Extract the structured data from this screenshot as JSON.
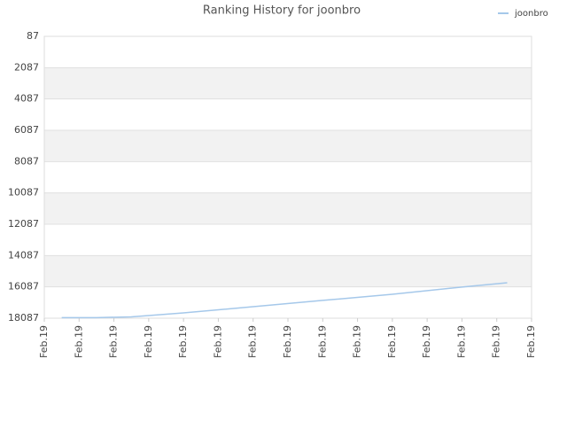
{
  "chart_data": {
    "type": "line",
    "title": "Ranking History for joonbro",
    "x": [
      0.5,
      1.5,
      2.5,
      4,
      6,
      8,
      10,
      12,
      13.3
    ],
    "series": [
      {
        "name": "joonbro",
        "color": "#a5c8ea",
        "values": [
          18050,
          18050,
          18000,
          17750,
          17350,
          16950,
          16560,
          16100,
          15820
        ]
      }
    ],
    "xlim": [
      0,
      14
    ],
    "xticks": [
      {
        "value": 0,
        "label": "Feb.19"
      },
      {
        "value": 1,
        "label": "Feb.19"
      },
      {
        "value": 2,
        "label": "Feb.19"
      },
      {
        "value": 3,
        "label": "Feb.19"
      },
      {
        "value": 4,
        "label": "Feb.19"
      },
      {
        "value": 5,
        "label": "Feb.19"
      },
      {
        "value": 6,
        "label": "Feb.19"
      },
      {
        "value": 7,
        "label": "Feb.19"
      },
      {
        "value": 8,
        "label": "Feb.19"
      },
      {
        "value": 9,
        "label": "Feb.19"
      },
      {
        "value": 10,
        "label": "Feb.19"
      },
      {
        "value": 11,
        "label": "Feb.19"
      },
      {
        "value": 12,
        "label": "Feb.19"
      },
      {
        "value": 13,
        "label": "Feb.19"
      },
      {
        "value": 14,
        "label": "Feb.19"
      }
    ],
    "ylim": [
      87,
      18087
    ],
    "y_inverted": true,
    "yticks": [
      87,
      2087,
      4087,
      6087,
      8087,
      10087,
      12087,
      14087,
      16087,
      18087
    ],
    "grid": true,
    "legend": "top-right"
  }
}
